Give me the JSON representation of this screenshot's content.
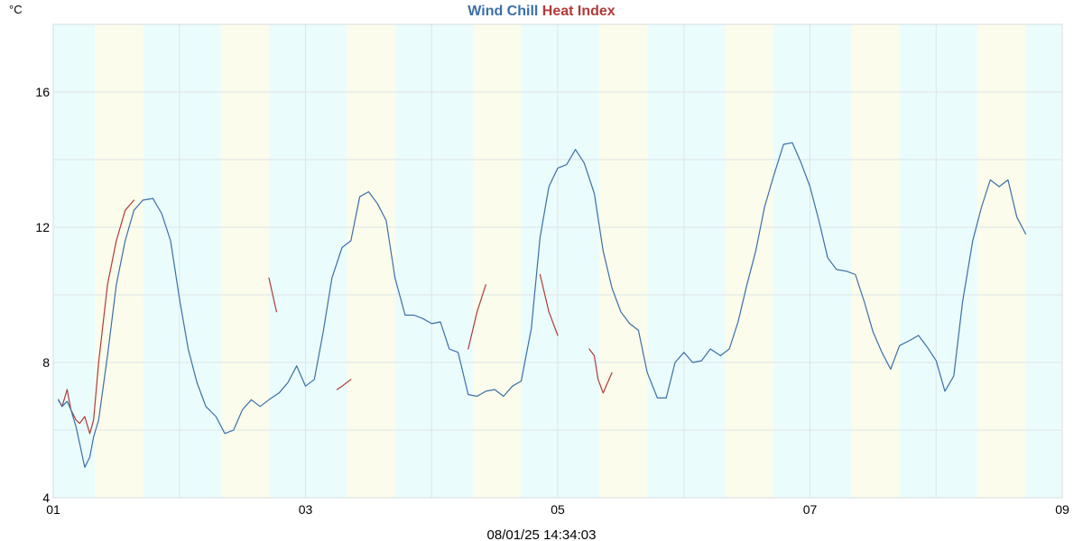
{
  "chart_data": {
    "type": "line",
    "title_parts": [
      {
        "text": "Wind Chill",
        "color": "#3a6fa8"
      },
      {
        "text": "Heat Index",
        "color": "#b03a3a"
      }
    ],
    "y_unit_label": "°C",
    "timestamp": "08/01/25 14:34:03",
    "x_range_days": [
      1,
      9
    ],
    "x_tick_labels": [
      {
        "day": 1,
        "label": "01"
      },
      {
        "day": 3,
        "label": "03"
      },
      {
        "day": 5,
        "label": "05"
      },
      {
        "day": 7,
        "label": "07"
      },
      {
        "day": 9,
        "label": "09"
      }
    ],
    "ylim": [
      4,
      18
    ],
    "y_ticks": [
      4,
      8,
      12,
      16
    ],
    "y_grid": [
      4,
      6,
      8,
      10,
      12,
      14,
      16,
      18
    ],
    "x_grid_days": [
      1,
      2,
      3,
      4,
      5,
      6,
      7,
      8,
      9
    ],
    "day_bands": [
      {
        "start": 1.0,
        "end": 1.33,
        "color": "#ebfcfc"
      },
      {
        "start": 1.33,
        "end": 1.71,
        "color": "#fcfcec"
      },
      {
        "start": 1.71,
        "end": 2.33,
        "color": "#ebfcfc"
      },
      {
        "start": 2.33,
        "end": 2.71,
        "color": "#fcfcec"
      },
      {
        "start": 2.71,
        "end": 3.33,
        "color": "#ebfcfc"
      },
      {
        "start": 3.33,
        "end": 3.71,
        "color": "#fcfcec"
      },
      {
        "start": 3.71,
        "end": 4.33,
        "color": "#ebfcfc"
      },
      {
        "start": 4.33,
        "end": 4.71,
        "color": "#fcfcec"
      },
      {
        "start": 4.71,
        "end": 5.33,
        "color": "#ebfcfc"
      },
      {
        "start": 5.33,
        "end": 5.71,
        "color": "#fcfcec"
      },
      {
        "start": 5.71,
        "end": 6.33,
        "color": "#ebfcfc"
      },
      {
        "start": 6.33,
        "end": 6.71,
        "color": "#fcfcec"
      },
      {
        "start": 6.71,
        "end": 7.33,
        "color": "#ebfcfc"
      },
      {
        "start": 7.33,
        "end": 7.71,
        "color": "#fcfcec"
      },
      {
        "start": 7.71,
        "end": 8.33,
        "color": "#ebfcfc"
      },
      {
        "start": 8.33,
        "end": 8.71,
        "color": "#fcfcec"
      },
      {
        "start": 8.71,
        "end": 9.0,
        "color": "#ebfcfc"
      }
    ],
    "series": [
      {
        "name": "Heat Index",
        "color": "#b03a3a",
        "points": [
          [
            1.04,
            6.9
          ],
          [
            1.07,
            6.7
          ],
          [
            1.11,
            7.2
          ],
          [
            1.14,
            6.6
          ],
          [
            1.18,
            6.3
          ],
          [
            1.21,
            6.2
          ],
          [
            1.25,
            6.4
          ],
          [
            1.29,
            5.9
          ],
          [
            1.32,
            6.3
          ],
          [
            1.36,
            8.0
          ],
          [
            1.43,
            10.3
          ],
          [
            1.5,
            11.6
          ],
          [
            1.57,
            12.5
          ],
          [
            1.64,
            12.8
          ],
          [
            2.71,
            10.5
          ],
          [
            2.77,
            9.5
          ],
          [
            3.25,
            7.2
          ],
          [
            3.29,
            7.3
          ],
          [
            3.36,
            7.5
          ],
          [
            4.29,
            8.4
          ],
          [
            4.36,
            9.5
          ],
          [
            4.43,
            10.3
          ],
          [
            4.86,
            10.6
          ],
          [
            4.93,
            9.5
          ],
          [
            5.0,
            8.8
          ],
          [
            5.25,
            8.4
          ],
          [
            5.29,
            8.2
          ],
          [
            5.32,
            7.5
          ],
          [
            5.36,
            7.1
          ],
          [
            5.43,
            7.7
          ]
        ]
      },
      {
        "name": "Wind Chill",
        "color": "#3a6fa8",
        "points": [
          [
            1.04,
            6.9
          ],
          [
            1.07,
            6.7
          ],
          [
            1.11,
            6.85
          ],
          [
            1.14,
            6.6
          ],
          [
            1.18,
            6.1
          ],
          [
            1.21,
            5.6
          ],
          [
            1.25,
            4.9
          ],
          [
            1.29,
            5.2
          ],
          [
            1.32,
            5.8
          ],
          [
            1.36,
            6.3
          ],
          [
            1.43,
            8.2
          ],
          [
            1.5,
            10.3
          ],
          [
            1.57,
            11.6
          ],
          [
            1.64,
            12.5
          ],
          [
            1.71,
            12.8
          ],
          [
            1.79,
            12.85
          ],
          [
            1.86,
            12.4
          ],
          [
            1.93,
            11.6
          ],
          [
            2.0,
            9.9
          ],
          [
            2.07,
            8.4
          ],
          [
            2.14,
            7.4
          ],
          [
            2.21,
            6.7
          ],
          [
            2.29,
            6.4
          ],
          [
            2.36,
            5.9
          ],
          [
            2.43,
            6.0
          ],
          [
            2.5,
            6.6
          ],
          [
            2.57,
            6.9
          ],
          [
            2.64,
            6.7
          ],
          [
            2.71,
            6.9
          ],
          [
            2.79,
            7.1
          ],
          [
            2.86,
            7.4
          ],
          [
            2.93,
            7.9
          ],
          [
            3.0,
            7.3
          ],
          [
            3.07,
            7.5
          ],
          [
            3.14,
            8.9
          ],
          [
            3.21,
            10.5
          ],
          [
            3.29,
            11.4
          ],
          [
            3.36,
            11.6
          ],
          [
            3.43,
            12.9
          ],
          [
            3.5,
            13.05
          ],
          [
            3.57,
            12.7
          ],
          [
            3.64,
            12.2
          ],
          [
            3.71,
            10.5
          ],
          [
            3.79,
            9.4
          ],
          [
            3.86,
            9.4
          ],
          [
            3.93,
            9.3
          ],
          [
            4.0,
            9.15
          ],
          [
            4.07,
            9.2
          ],
          [
            4.14,
            8.4
          ],
          [
            4.21,
            8.3
          ],
          [
            4.29,
            7.05
          ],
          [
            4.36,
            7.0
          ],
          [
            4.43,
            7.15
          ],
          [
            4.5,
            7.2
          ],
          [
            4.57,
            7.0
          ],
          [
            4.64,
            7.3
          ],
          [
            4.71,
            7.45
          ],
          [
            4.79,
            9.0
          ],
          [
            4.86,
            11.7
          ],
          [
            4.93,
            13.2
          ],
          [
            5.0,
            13.75
          ],
          [
            5.07,
            13.85
          ],
          [
            5.14,
            14.3
          ],
          [
            5.21,
            13.9
          ],
          [
            5.29,
            13.0
          ],
          [
            5.36,
            11.3
          ],
          [
            5.43,
            10.2
          ],
          [
            5.5,
            9.5
          ],
          [
            5.57,
            9.15
          ],
          [
            5.64,
            8.95
          ],
          [
            5.71,
            7.7
          ],
          [
            5.79,
            6.95
          ],
          [
            5.86,
            6.95
          ],
          [
            5.93,
            8.0
          ],
          [
            6.0,
            8.3
          ],
          [
            6.07,
            8.0
          ],
          [
            6.14,
            8.05
          ],
          [
            6.21,
            8.4
          ],
          [
            6.29,
            8.2
          ],
          [
            6.36,
            8.4
          ],
          [
            6.43,
            9.2
          ],
          [
            6.5,
            10.3
          ],
          [
            6.57,
            11.3
          ],
          [
            6.64,
            12.6
          ],
          [
            6.71,
            13.5
          ],
          [
            6.79,
            14.45
          ],
          [
            6.86,
            14.5
          ],
          [
            6.93,
            13.9
          ],
          [
            7.0,
            13.2
          ],
          [
            7.07,
            12.2
          ],
          [
            7.14,
            11.1
          ],
          [
            7.21,
            10.75
          ],
          [
            7.29,
            10.7
          ],
          [
            7.36,
            10.6
          ],
          [
            7.43,
            9.8
          ],
          [
            7.5,
            8.9
          ],
          [
            7.57,
            8.3
          ],
          [
            7.64,
            7.8
          ],
          [
            7.71,
            8.5
          ],
          [
            7.79,
            8.65
          ],
          [
            7.86,
            8.8
          ],
          [
            7.93,
            8.45
          ],
          [
            8.0,
            8.05
          ],
          [
            8.07,
            7.15
          ],
          [
            8.14,
            7.6
          ],
          [
            8.21,
            9.8
          ],
          [
            8.29,
            11.6
          ],
          [
            8.36,
            12.6
          ],
          [
            8.43,
            13.4
          ],
          [
            8.5,
            13.2
          ],
          [
            8.57,
            13.4
          ],
          [
            8.64,
            12.3
          ],
          [
            8.71,
            11.8
          ]
        ]
      }
    ]
  }
}
